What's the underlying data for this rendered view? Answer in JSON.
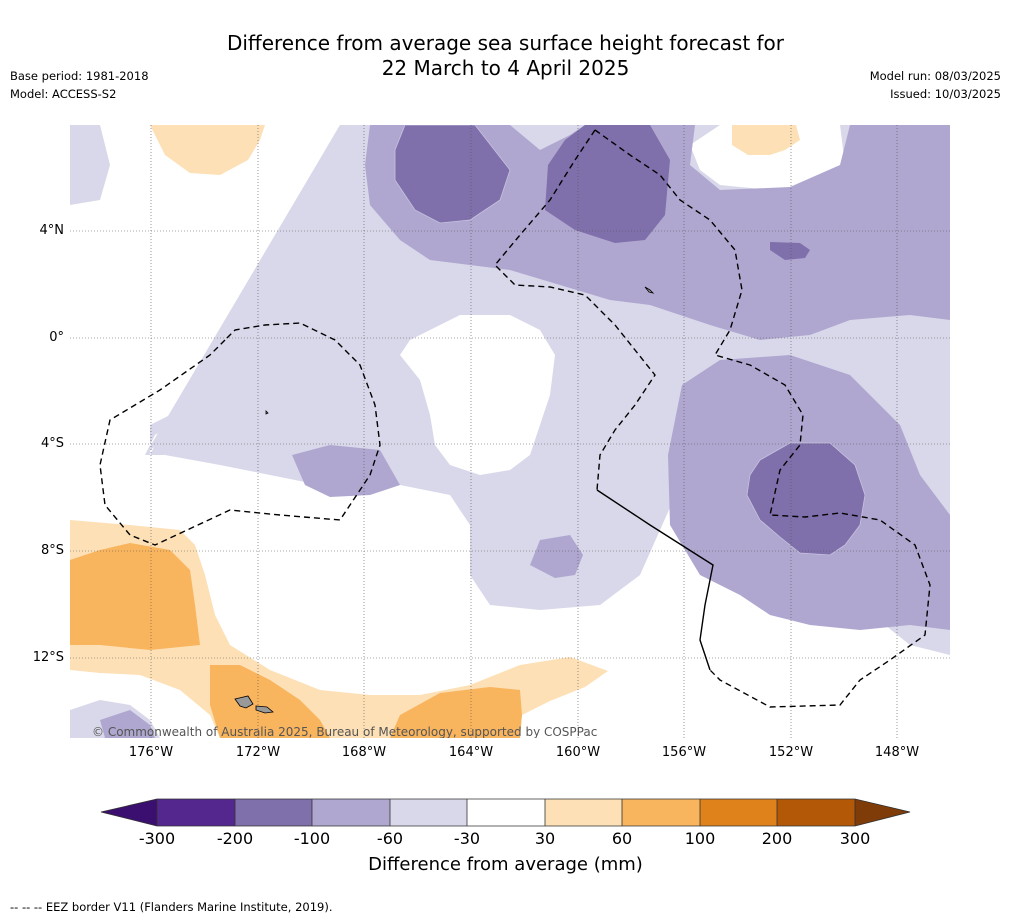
{
  "title": {
    "line1": "Difference from average sea surface height forecast for",
    "line2": "22 March to 4 April 2025"
  },
  "meta_left": {
    "base_period": "Base period: 1981-2018",
    "model": "Model: ACCESS-S2"
  },
  "meta_right": {
    "model_run": "Model run: 08/03/2025",
    "issued": "Issued: 10/03/2025"
  },
  "map": {
    "longitude_labels": [
      "176°W",
      "172°W",
      "168°W",
      "164°W",
      "160°W",
      "156°W",
      "152°W",
      "148°W"
    ],
    "latitude_labels": [
      "4°N",
      "0°",
      "4°S",
      "8°S",
      "12°S"
    ],
    "copyright": "© Commonwealth of Australia 2025, Bureau of Meteorology, supported by COSPPac"
  },
  "colorbar": {
    "labels": [
      "-300",
      "-200",
      "-100",
      "-60",
      "-30",
      "30",
      "60",
      "100",
      "200",
      "300"
    ],
    "colors": [
      "#3b0f6f",
      "#54278f",
      "#7f6fab",
      "#afa7cf",
      "#d8d8ea",
      "#ffffff",
      "#fde0b5",
      "#f9b45e",
      "#e0821b",
      "#b35806",
      "#7f3b08"
    ],
    "title": "Difference from average (mm)"
  },
  "footer": "--  --  -- EEZ border V11 (Flanders Marine Institute, 2019)."
}
